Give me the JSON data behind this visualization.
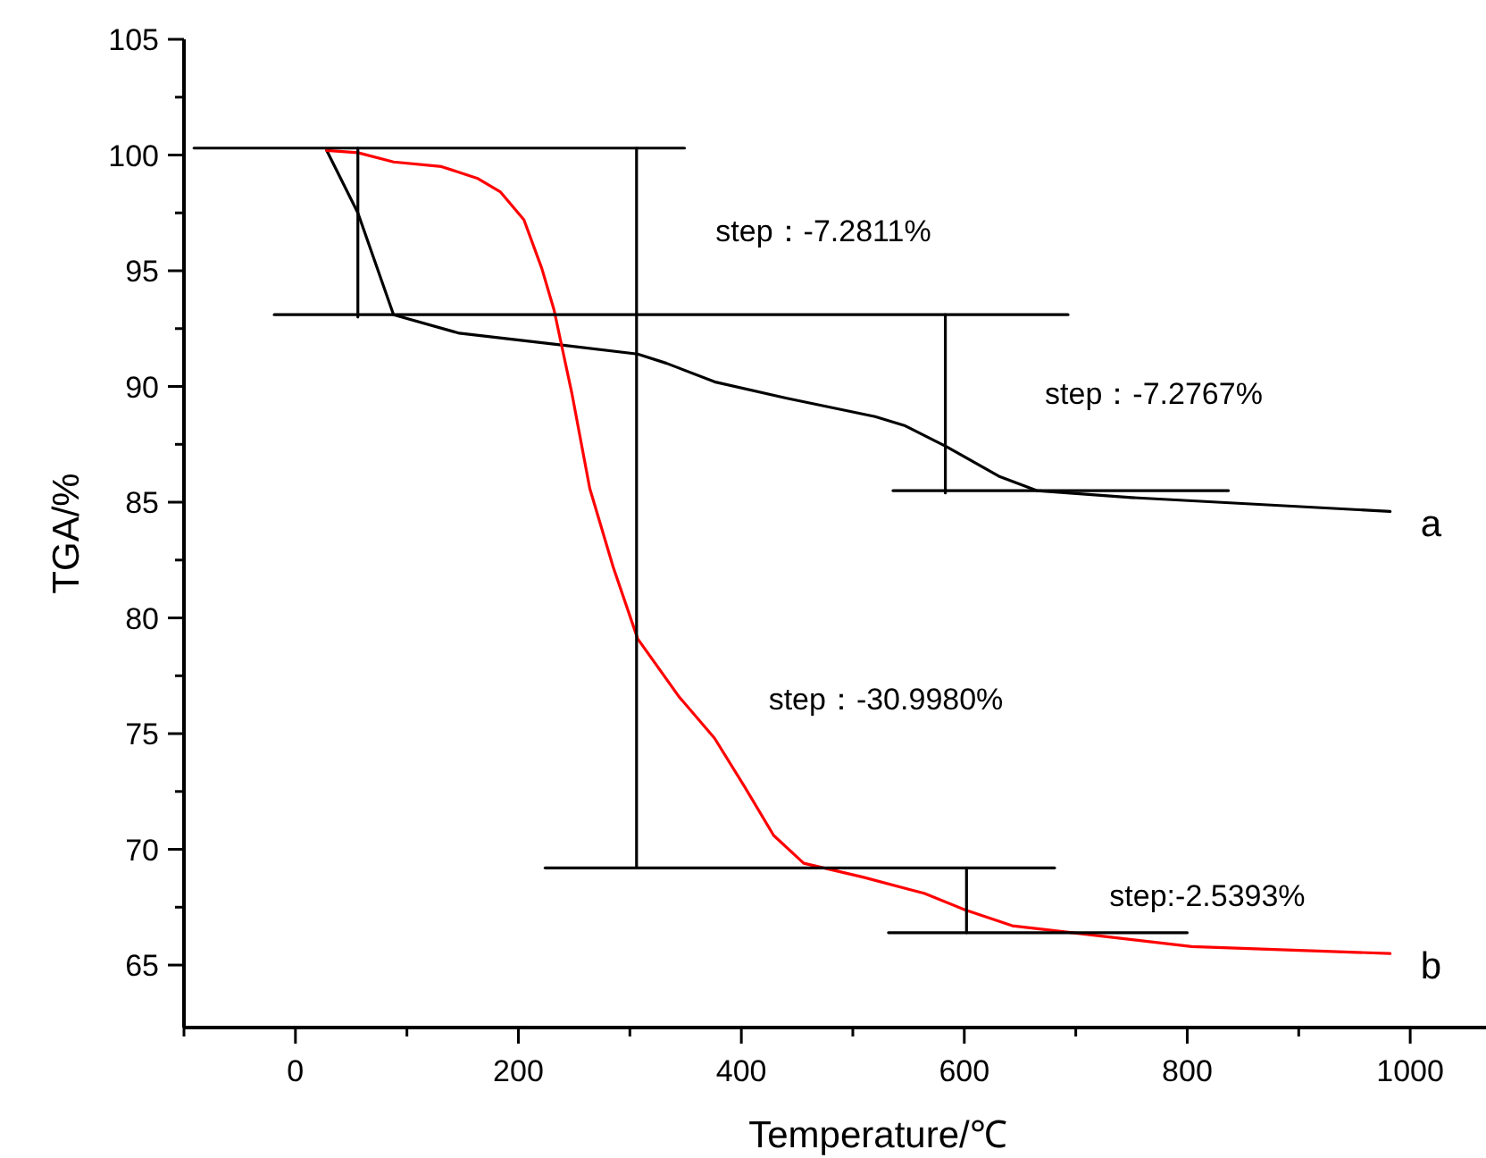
{
  "chart_data": {
    "type": "line",
    "xlabel": "Temperature/℃",
    "ylabel": "TGA/%",
    "xlim": [
      -100,
      1068
    ],
    "ylim": [
      62.3,
      105
    ],
    "xticks": [
      {
        "value": -100,
        "label": null
      },
      0,
      {
        "value": 100,
        "label": null
      },
      200,
      {
        "value": 300,
        "label": null
      },
      400,
      {
        "value": 500,
        "label": null
      },
      600,
      {
        "value": 700,
        "label": null
      },
      800,
      {
        "value": 900,
        "label": null
      },
      1000
    ],
    "yticks": [
      65,
      {
        "value": 67.5,
        "label": null
      },
      70,
      {
        "value": 72.5,
        "label": null
      },
      75,
      {
        "value": 77.5,
        "label": null
      },
      80,
      {
        "value": 82.5,
        "label": null
      },
      85,
      {
        "value": 87.5,
        "label": null
      },
      90,
      {
        "value": 92.5,
        "label": null
      },
      95,
      {
        "value": 97.5,
        "label": null
      },
      100,
      {
        "value": 102.5,
        "label": null
      },
      105
    ],
    "series": [
      {
        "name": "a",
        "color": "#000000",
        "x": [
          28,
          56,
          88,
          147,
          237,
          307,
          333,
          376,
          440,
          520,
          547,
          584,
          632,
          665,
          750,
          982
        ],
        "values": [
          100.2,
          97.5,
          93.1,
          92.3,
          91.8,
          91.4,
          91.0,
          90.2,
          89.5,
          88.7,
          88.3,
          87.4,
          86.1,
          85.5,
          85.2,
          84.6
        ]
      },
      {
        "name": "b",
        "color": "#ff0000",
        "x": [
          28,
          56,
          88,
          131,
          163,
          184,
          205,
          221,
          232,
          248,
          264,
          285,
          307,
          344,
          376,
          403,
          429,
          456,
          509,
          564,
          600,
          643,
          697,
          804,
          982
        ],
        "values": [
          100.2,
          100.1,
          99.7,
          99.5,
          99.0,
          98.4,
          97.2,
          95.1,
          93.3,
          89.7,
          85.6,
          82.2,
          79.1,
          76.6,
          74.8,
          72.7,
          70.6,
          69.4,
          68.8,
          68.1,
          67.4,
          66.7,
          66.4,
          65.8,
          65.5
        ]
      },
      {
        "color": "#000000",
        "x": [
          -91,
          349
        ],
        "values": [
          100.3,
          100.3
        ]
      },
      {
        "color": "#000000",
        "x": [
          -19,
          693
        ],
        "values": [
          93.1,
          93.1
        ]
      },
      {
        "color": "#000000",
        "x": [
          56,
          56
        ],
        "values": [
          100.3,
          93.0
        ]
      },
      {
        "color": "#000000",
        "x": [
          306,
          306
        ],
        "values": [
          100.3,
          69.2
        ]
      },
      {
        "color": "#000000",
        "x": [
          583,
          583
        ],
        "values": [
          93.1,
          85.4
        ]
      },
      {
        "color": "#000000",
        "x": [
          536,
          837
        ],
        "values": [
          85.5,
          85.5
        ]
      },
      {
        "color": "#000000",
        "x": [
          224,
          681
        ],
        "values": [
          69.2,
          69.2
        ]
      },
      {
        "color": "#000000",
        "x": [
          602,
          602
        ],
        "values": [
          69.2,
          66.4
        ]
      },
      {
        "color": "#000000",
        "x": [
          532,
          800
        ],
        "values": [
          66.4,
          66.4
        ]
      }
    ],
    "annotations": [
      "step：-7.2811%",
      "step：-7.2767%",
      "step：-30.9980%",
      "step:-2.5393%"
    ]
  }
}
